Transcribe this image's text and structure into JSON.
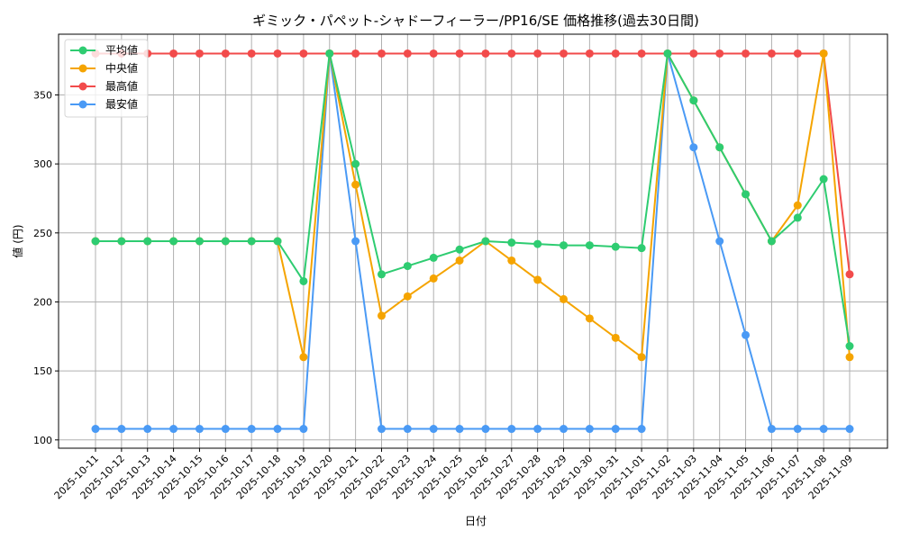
{
  "chart_data": {
    "type": "line",
    "title": "ギミック・パペット-シャドーフィーラー/PP16/SE 価格推移(過去30日間)",
    "xlabel": "日付",
    "ylabel": "値 (円)",
    "ylim": [
      94,
      394
    ],
    "yticks": [
      100,
      150,
      200,
      250,
      300,
      350
    ],
    "grid": true,
    "legend_position": "upper left",
    "x": [
      "2025-10-11",
      "2025-10-12",
      "2025-10-13",
      "2025-10-14",
      "2025-10-15",
      "2025-10-16",
      "2025-10-17",
      "2025-10-18",
      "2025-10-19",
      "2025-10-20",
      "2025-10-21",
      "2025-10-22",
      "2025-10-23",
      "2025-10-24",
      "2025-10-25",
      "2025-10-26",
      "2025-10-27",
      "2025-10-28",
      "2025-10-29",
      "2025-10-30",
      "2025-10-31",
      "2025-11-01",
      "2025-11-02",
      "2025-11-03",
      "2025-11-04",
      "2025-11-05",
      "2025-11-06",
      "2025-11-07",
      "2025-11-08",
      "2025-11-09"
    ],
    "series": [
      {
        "name": "平均値",
        "color": "#2ecc71",
        "values": [
          244,
          244,
          244,
          244,
          244,
          244,
          244,
          244,
          215,
          380,
          300,
          220,
          226,
          232,
          238,
          244,
          243,
          242,
          241,
          241,
          240,
          239,
          380,
          346,
          312,
          278,
          244,
          261,
          289,
          168
        ]
      },
      {
        "name": "中央値",
        "color": "#f5a400",
        "values": [
          244,
          244,
          244,
          244,
          244,
          244,
          244,
          244,
          160,
          380,
          285,
          190,
          204,
          217,
          230,
          244,
          230,
          216,
          202,
          188,
          174,
          160,
          380,
          346,
          312,
          278,
          244,
          270,
          380,
          160
        ]
      },
      {
        "name": "最高値",
        "color": "#f24b4b",
        "values": [
          380,
          380,
          380,
          380,
          380,
          380,
          380,
          380,
          380,
          380,
          380,
          380,
          380,
          380,
          380,
          380,
          380,
          380,
          380,
          380,
          380,
          380,
          380,
          380,
          380,
          380,
          380,
          380,
          380,
          220
        ]
      },
      {
        "name": "最安値",
        "color": "#4a9af5",
        "values": [
          108,
          108,
          108,
          108,
          108,
          108,
          108,
          108,
          108,
          380,
          244,
          108,
          108,
          108,
          108,
          108,
          108,
          108,
          108,
          108,
          108,
          108,
          380,
          312,
          244,
          176,
          108,
          108,
          108,
          108
        ]
      }
    ],
    "draw_order": [
      2,
      3,
      1,
      0
    ]
  }
}
